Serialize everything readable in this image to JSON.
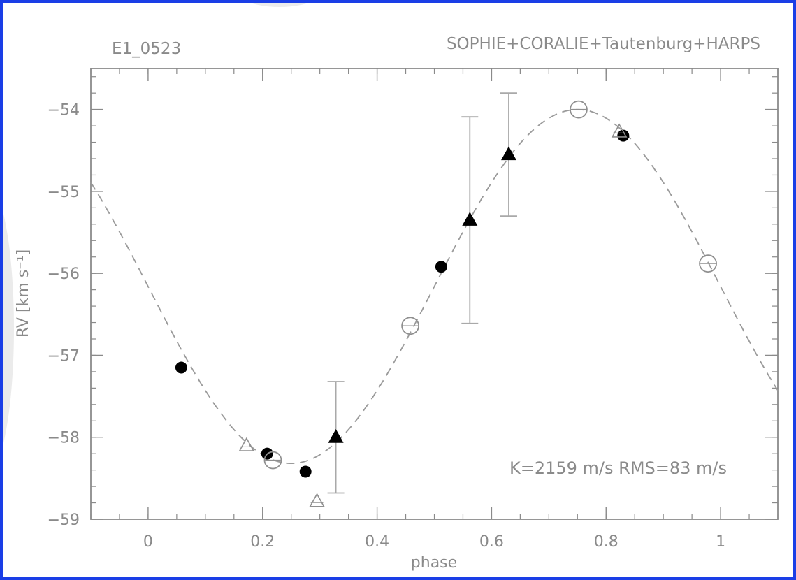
{
  "chart_data": {
    "type": "scatter",
    "title_left": "E1_0523",
    "title_right": "SOPHIE+CORALIE+Tautenburg+HARPS",
    "xlabel": "phase",
    "ylabel": "RV [km s⁻¹]",
    "xlim": [
      -0.1,
      1.1
    ],
    "ylim": [
      -59,
      -53.5
    ],
    "x_ticks": [
      0,
      0.2,
      0.4,
      0.6,
      0.8,
      1
    ],
    "x_tick_labels": [
      "0",
      "0.2",
      "0.4",
      "0.6",
      "0.8",
      "1"
    ],
    "y_ticks": [
      -59,
      -58,
      -57,
      -56,
      -55,
      -54
    ],
    "y_tick_labels": [
      "−59",
      "−58",
      "−57",
      "−56",
      "−55",
      "−54"
    ],
    "annotation": "K=2159 m/s RMS=83 m/s",
    "model": {
      "style": "dashed",
      "gamma": -56.16,
      "amplitude": 2.159,
      "peak_phase": 0.75
    },
    "series": [
      {
        "marker": "filled-circle",
        "points": [
          {
            "x": 0.058,
            "y": -57.15
          },
          {
            "x": 0.208,
            "y": -58.2
          },
          {
            "x": 0.275,
            "y": -58.42
          },
          {
            "x": 0.512,
            "y": -55.92
          },
          {
            "x": 0.83,
            "y": -54.32
          }
        ]
      },
      {
        "marker": "open-circle",
        "points": [
          {
            "x": 0.218,
            "y": -58.28
          },
          {
            "x": 0.458,
            "y": -56.64
          },
          {
            "x": 0.752,
            "y": -54.0
          },
          {
            "x": 0.978,
            "y": -55.88
          }
        ]
      },
      {
        "marker": "filled-triangle",
        "points": [
          {
            "x": 0.328,
            "y": -58.0,
            "err": 0.68
          },
          {
            "x": 0.562,
            "y": -55.35,
            "err": 1.26
          },
          {
            "x": 0.63,
            "y": -54.55,
            "err": 0.75
          }
        ]
      },
      {
        "marker": "open-triangle",
        "points": [
          {
            "x": 0.172,
            "y": -58.1
          },
          {
            "x": 0.295,
            "y": -58.78
          },
          {
            "x": 0.823,
            "y": -54.27
          }
        ]
      }
    ]
  }
}
